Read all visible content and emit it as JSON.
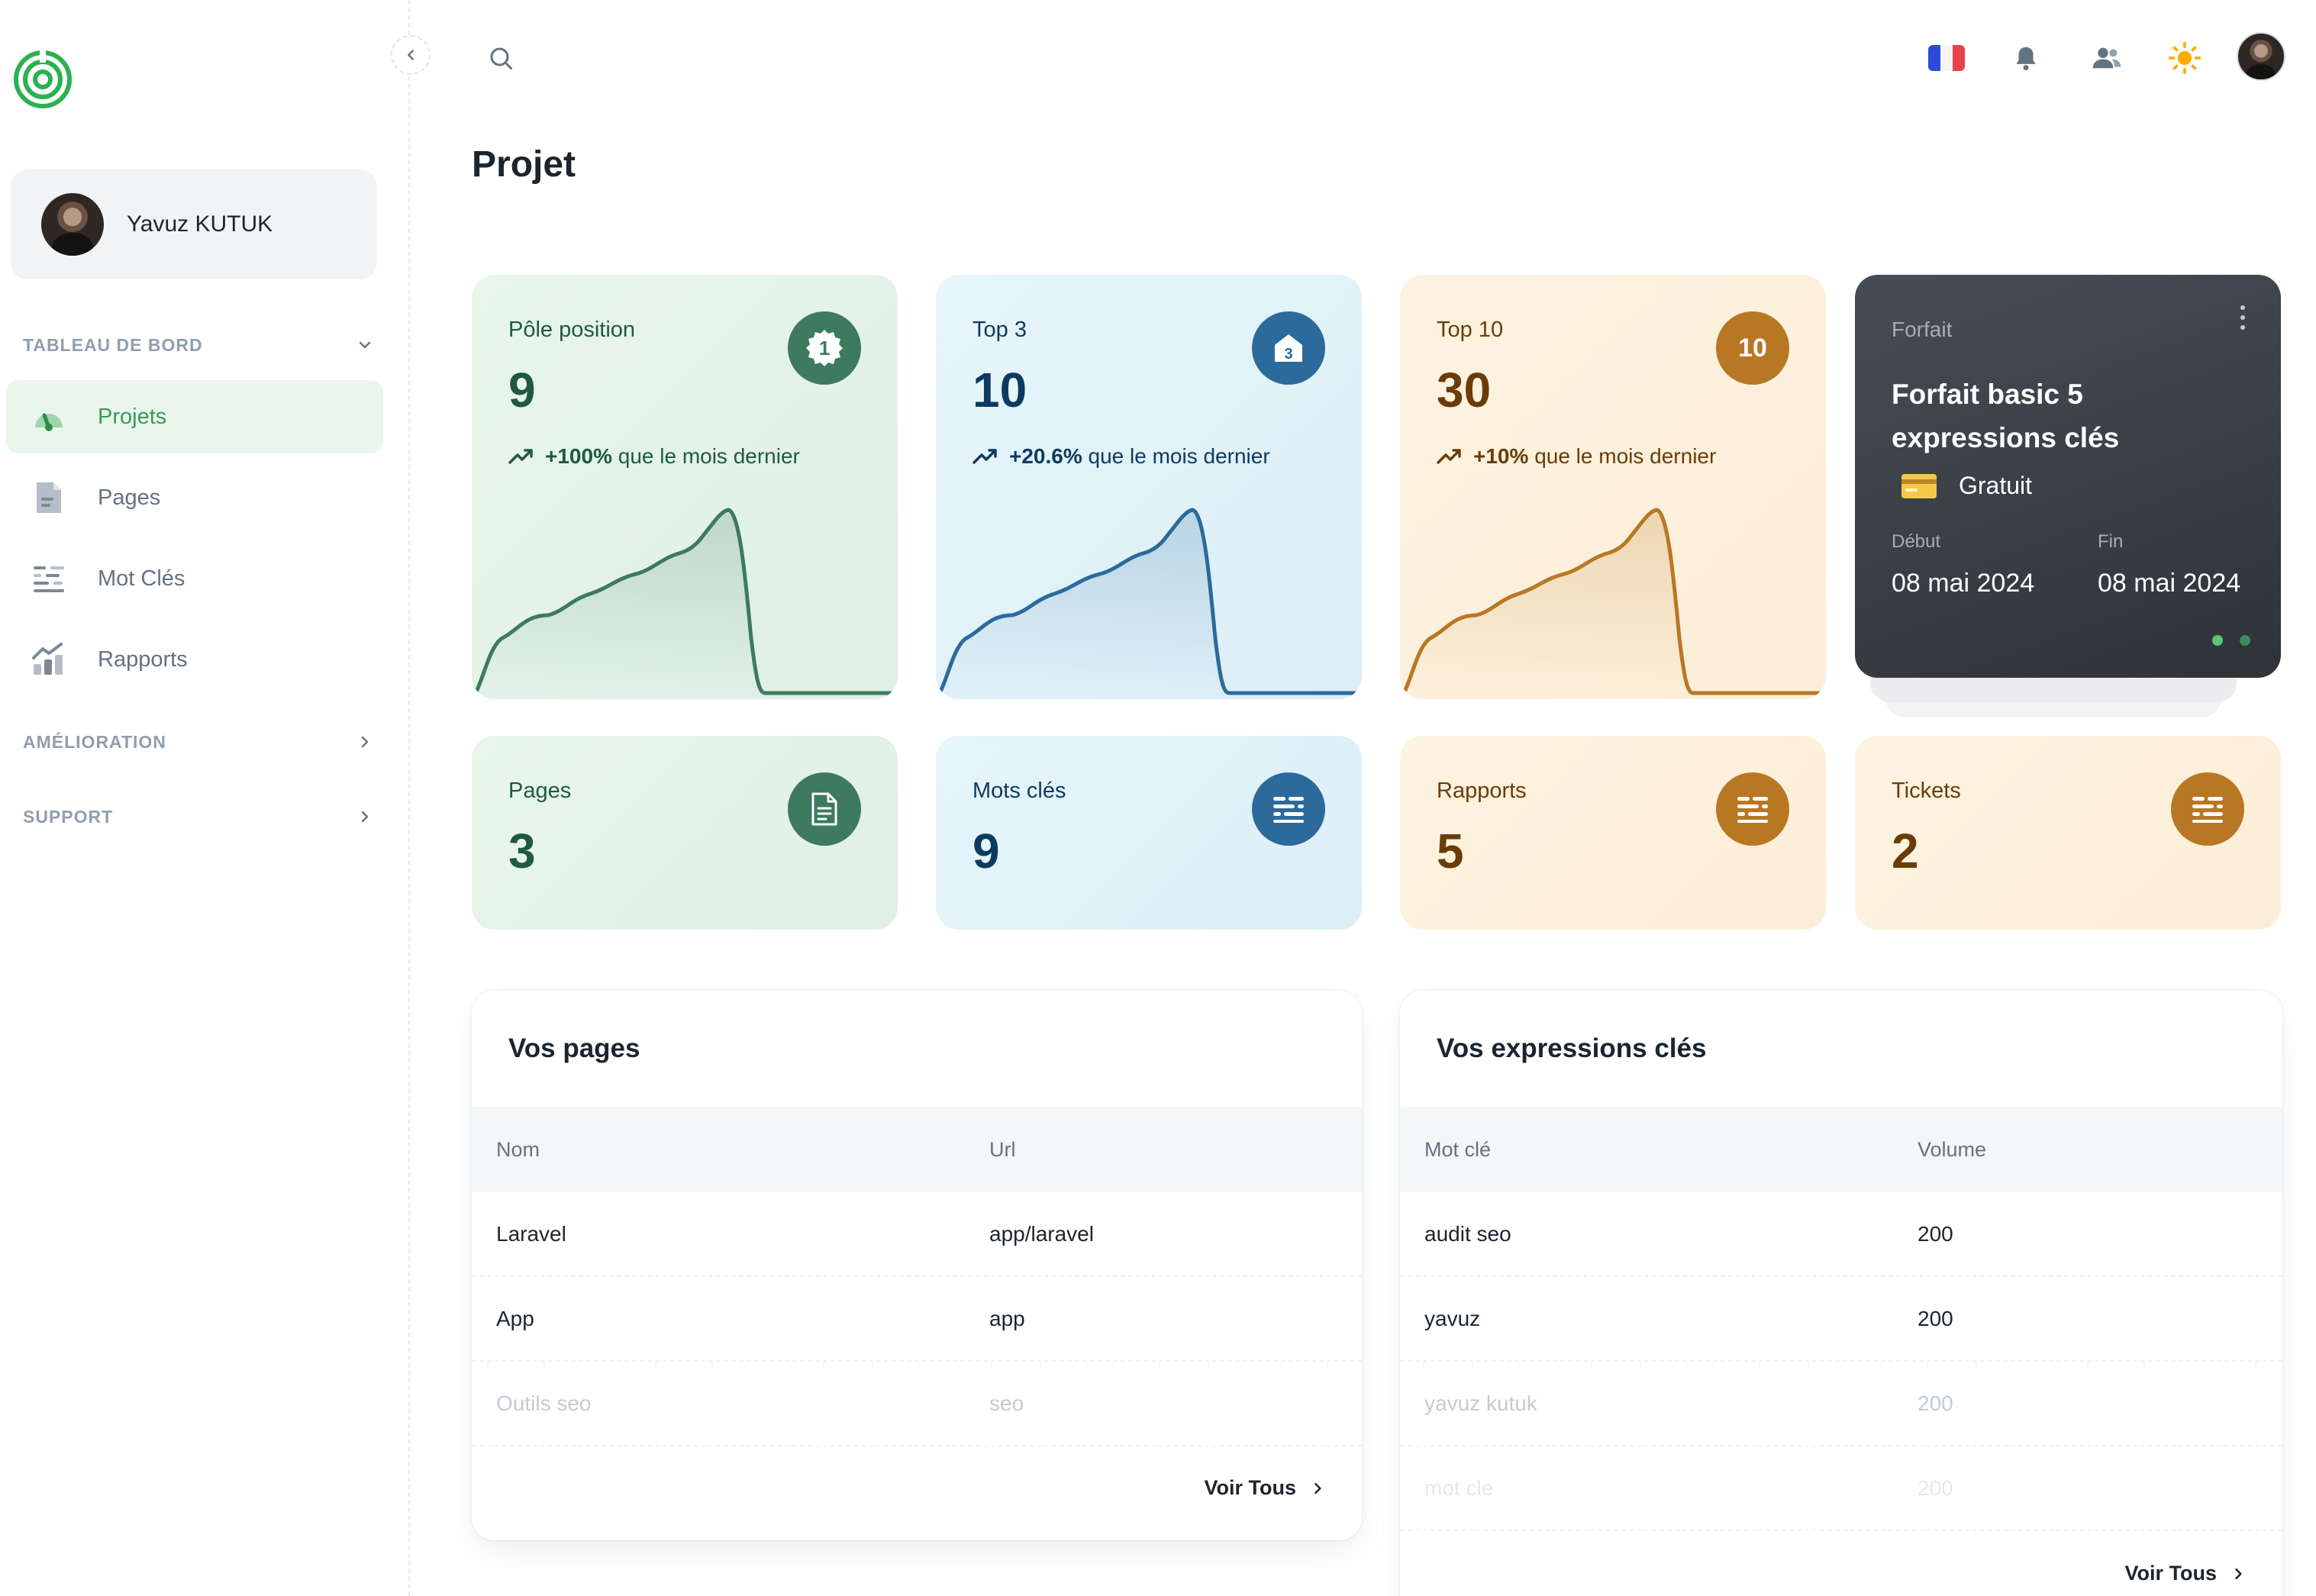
{
  "colors": {
    "brand_green": "#2bb14f",
    "active_green": "#3a9a58",
    "card_green": "#3d7a5e",
    "card_blue": "#2b6a9b",
    "card_amber": "#b87722",
    "forfait_bg": "#3b4047"
  },
  "sidebar": {
    "logo_icon": "target-logo-icon",
    "user": {
      "name": "Yavuz KUTUK"
    },
    "sections": [
      {
        "label": "TABLEAU DE BORD",
        "icon": "chevron-down-icon"
      },
      {
        "label": "AMÉLIORATION",
        "icon": "chevron-right-icon"
      },
      {
        "label": "SUPPORT",
        "icon": "chevron-right-icon"
      }
    ],
    "items": [
      {
        "label": "Projets",
        "icon": "dashboard-gauge-icon",
        "active": true
      },
      {
        "label": "Pages",
        "icon": "document-icon"
      },
      {
        "label": "Mot Clés",
        "icon": "keywords-list-icon"
      },
      {
        "label": "Rapports",
        "icon": "analytics-chart-icon"
      }
    ]
  },
  "header": {
    "icons": [
      "search-icon",
      "france-flag-icon",
      "bell-icon",
      "users-icon",
      "sun-icon",
      "avatar"
    ]
  },
  "page": {
    "title": "Projet"
  },
  "stats": [
    {
      "label": "Pôle position",
      "value": "9",
      "trend_value": "+100%",
      "trend_text": "que le mois dernier",
      "badge_icon": "badge-one-icon",
      "badge_text": "1"
    },
    {
      "label": "Top 3",
      "value": "10",
      "trend_value": "+20.6%",
      "trend_text": "que le mois dernier",
      "badge_icon": "podium-three-icon",
      "badge_text": "3"
    },
    {
      "label": "Top 10",
      "value": "30",
      "trend_value": "+10%",
      "trend_text": "que le mois dernier",
      "badge_icon": "ten-icon",
      "badge_text": "10"
    }
  ],
  "forfait": {
    "label": "Forfait",
    "title": "Forfait basic 5 expressions clés",
    "plan": "Gratuit",
    "plan_icon": "credit-card-icon",
    "start_label": "Début",
    "start_date": "08 mai 2024",
    "end_label": "Fin",
    "end_date": "08 mai 2024",
    "menu_icon": "more-vertical-icon",
    "slides": 2,
    "active_slide": 1
  },
  "counts": [
    {
      "label": "Pages",
      "value": "3",
      "icon": "document-icon"
    },
    {
      "label": "Mots clés",
      "value": "9",
      "icon": "keywords-list-icon"
    },
    {
      "label": "Rapports",
      "value": "5",
      "icon": "keywords-list-icon"
    },
    {
      "label": "Tickets",
      "value": "2",
      "icon": "keywords-list-icon"
    }
  ],
  "pages_table": {
    "title": "Vos pages",
    "columns": [
      "Nom",
      "Url"
    ],
    "rows": [
      [
        "Laravel",
        "app/laravel"
      ],
      [
        "App",
        "app"
      ],
      [
        "Outils seo",
        "seo"
      ]
    ],
    "link": "Voir Tous"
  },
  "keywords_table": {
    "title": "Vos expressions clés",
    "columns": [
      "Mot clé",
      "Volume"
    ],
    "rows": [
      [
        "audit seo",
        "200"
      ],
      [
        "yavuz",
        "200"
      ],
      [
        "yavuz kutuk",
        "200"
      ],
      [
        "mot cle",
        "200"
      ]
    ],
    "link": "Voir Tous"
  }
}
